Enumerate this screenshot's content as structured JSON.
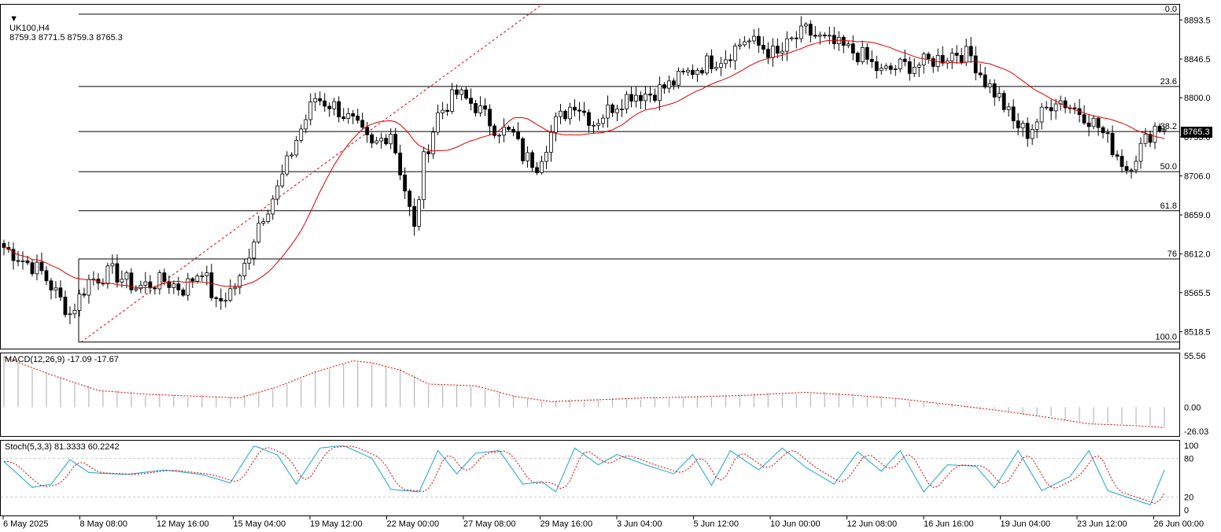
{
  "symbol_header": {
    "symbol": "UK100,H4",
    "ohlc": "8759.3 8771.5 8759.3 8765.3"
  },
  "current_price": "8765.3",
  "colors": {
    "bull": "#ffffff",
    "bear": "#000000",
    "ma": "#e00000",
    "signal": "#e00000",
    "stoch_main": "#1aa5c8",
    "hist": "#b8b8b8",
    "grid": "#c8c8c8"
  },
  "price_axis": {
    "labels": [
      "8893.5",
      "8846.5",
      "8800.0",
      "8753.0",
      "8706.0",
      "8659.0",
      "8612.0",
      "8565.5",
      "8518.5"
    ]
  },
  "fib_levels": [
    {
      "label": "0.0",
      "price": 8900.5
    },
    {
      "label": "23.6",
      "price": 8813.5
    },
    {
      "label": "38.2",
      "price": 8759.3
    },
    {
      "label": "50.0",
      "price": 8711.0
    },
    {
      "label": "61.8",
      "price": 8664.0
    },
    {
      "label": "76",
      "price": 8606.0
    },
    {
      "label": "100.0",
      "price": 8506.0
    }
  ],
  "macd_panel": {
    "header": "MACD(12,26,9) -17.09 -17.67",
    "axis": [
      "55.56",
      "0.00",
      "-26.03"
    ]
  },
  "stoch_panel": {
    "header": "Stoch(5,3,3) 81.3333 60.2242",
    "axis": [
      "100",
      "80",
      "20",
      "0"
    ]
  },
  "time_axis": [
    "6 May 2025",
    "8 May 08:00",
    "12 May 16:00",
    "15 May 04:00",
    "19 May 12:00",
    "22 May 00:00",
    "27 May 08:00",
    "29 May 16:00",
    "3 Jun 04:00",
    "5 Jun 12:00",
    "10 Jun 00:00",
    "12 Jun 08:00",
    "16 Jun 16:00",
    "19 Jun 04:00",
    "23 Jun 12:00",
    "26 Jun 00:00"
  ],
  "chart_data": {
    "type": "candlestick",
    "price_range": [
      8500,
      8910
    ],
    "closes_keypoints": [
      [
        0,
        8620
      ],
      [
        8,
        8590
      ],
      [
        14,
        8540
      ],
      [
        18,
        8580
      ],
      [
        23,
        8590
      ],
      [
        28,
        8572
      ],
      [
        34,
        8580
      ],
      [
        38,
        8570
      ],
      [
        42,
        8595
      ],
      [
        45,
        8550
      ],
      [
        50,
        8580
      ],
      [
        54,
        8650
      ],
      [
        58,
        8690
      ],
      [
        62,
        8750
      ],
      [
        66,
        8800
      ],
      [
        70,
        8790
      ],
      [
        74,
        8770
      ],
      [
        78,
        8740
      ],
      [
        82,
        8760
      ],
      [
        85,
        8690
      ],
      [
        87,
        8640
      ],
      [
        89,
        8725
      ],
      [
        92,
        8780
      ],
      [
        96,
        8805
      ],
      [
        100,
        8790
      ],
      [
        104,
        8765
      ],
      [
        108,
        8755
      ],
      [
        110,
        8730
      ],
      [
        113,
        8720
      ],
      [
        117,
        8770
      ],
      [
        121,
        8795
      ],
      [
        125,
        8770
      ],
      [
        129,
        8790
      ],
      [
        133,
        8805
      ],
      [
        137,
        8805
      ],
      [
        141,
        8815
      ],
      [
        145,
        8830
      ],
      [
        149,
        8842
      ],
      [
        153,
        8850
      ],
      [
        157,
        8870
      ],
      [
        161,
        8860
      ],
      [
        164,
        8850
      ],
      [
        167,
        8868
      ],
      [
        170,
        8880
      ],
      [
        174,
        8868
      ],
      [
        178,
        8860
      ],
      [
        182,
        8850
      ],
      [
        186,
        8830
      ],
      [
        190,
        8838
      ],
      [
        194,
        8840
      ],
      [
        198,
        8847
      ],
      [
        202,
        8855
      ],
      [
        205,
        8850
      ],
      [
        208,
        8820
      ],
      [
        211,
        8800
      ],
      [
        214,
        8770
      ],
      [
        217,
        8758
      ],
      [
        220,
        8780
      ],
      [
        223,
        8800
      ],
      [
        226,
        8790
      ],
      [
        229,
        8780
      ],
      [
        232,
        8765
      ],
      [
        235,
        8740
      ],
      [
        238,
        8715
      ],
      [
        241,
        8740
      ],
      [
        244,
        8765
      ]
    ],
    "ma_period": 20,
    "macd_signal_keypoints": [
      [
        0,
        54
      ],
      [
        10,
        35
      ],
      [
        20,
        18
      ],
      [
        30,
        14
      ],
      [
        40,
        12
      ],
      [
        50,
        10
      ],
      [
        58,
        22
      ],
      [
        66,
        38
      ],
      [
        74,
        50
      ],
      [
        78,
        48
      ],
      [
        84,
        40
      ],
      [
        90,
        25
      ],
      [
        100,
        23
      ],
      [
        108,
        12
      ],
      [
        116,
        6
      ],
      [
        126,
        8
      ],
      [
        136,
        10
      ],
      [
        146,
        11
      ],
      [
        158,
        13
      ],
      [
        170,
        16
      ],
      [
        180,
        13
      ],
      [
        190,
        9
      ],
      [
        200,
        3
      ],
      [
        210,
        -3
      ],
      [
        220,
        -10
      ],
      [
        230,
        -18
      ],
      [
        240,
        -20
      ],
      [
        246,
        -22
      ]
    ],
    "stoch_keypoints": [
      [
        0,
        75
      ],
      [
        6,
        35
      ],
      [
        10,
        40
      ],
      [
        14,
        78
      ],
      [
        18,
        58
      ],
      [
        26,
        55
      ],
      [
        34,
        62
      ],
      [
        42,
        55
      ],
      [
        48,
        42
      ],
      [
        53,
        100
      ],
      [
        58,
        85
      ],
      [
        62,
        40
      ],
      [
        67,
        96
      ],
      [
        72,
        100
      ],
      [
        78,
        80
      ],
      [
        82,
        32
      ],
      [
        88,
        28
      ],
      [
        92,
        92
      ],
      [
        96,
        56
      ],
      [
        100,
        88
      ],
      [
        105,
        92
      ],
      [
        110,
        40
      ],
      [
        114,
        44
      ],
      [
        117,
        28
      ],
      [
        121,
        96
      ],
      [
        126,
        70
      ],
      [
        130,
        86
      ],
      [
        136,
        70
      ],
      [
        142,
        56
      ],
      [
        146,
        86
      ],
      [
        150,
        38
      ],
      [
        154,
        92
      ],
      [
        160,
        62
      ],
      [
        165,
        96
      ],
      [
        170,
        66
      ],
      [
        176,
        40
      ],
      [
        181,
        90
      ],
      [
        186,
        60
      ],
      [
        190,
        92
      ],
      [
        195,
        28
      ],
      [
        200,
        70
      ],
      [
        206,
        68
      ],
      [
        210,
        34
      ],
      [
        215,
        92
      ],
      [
        220,
        30
      ],
      [
        226,
        52
      ],
      [
        230,
        92
      ],
      [
        234,
        30
      ],
      [
        238,
        20
      ],
      [
        243,
        8
      ],
      [
        247,
        80
      ]
    ]
  }
}
